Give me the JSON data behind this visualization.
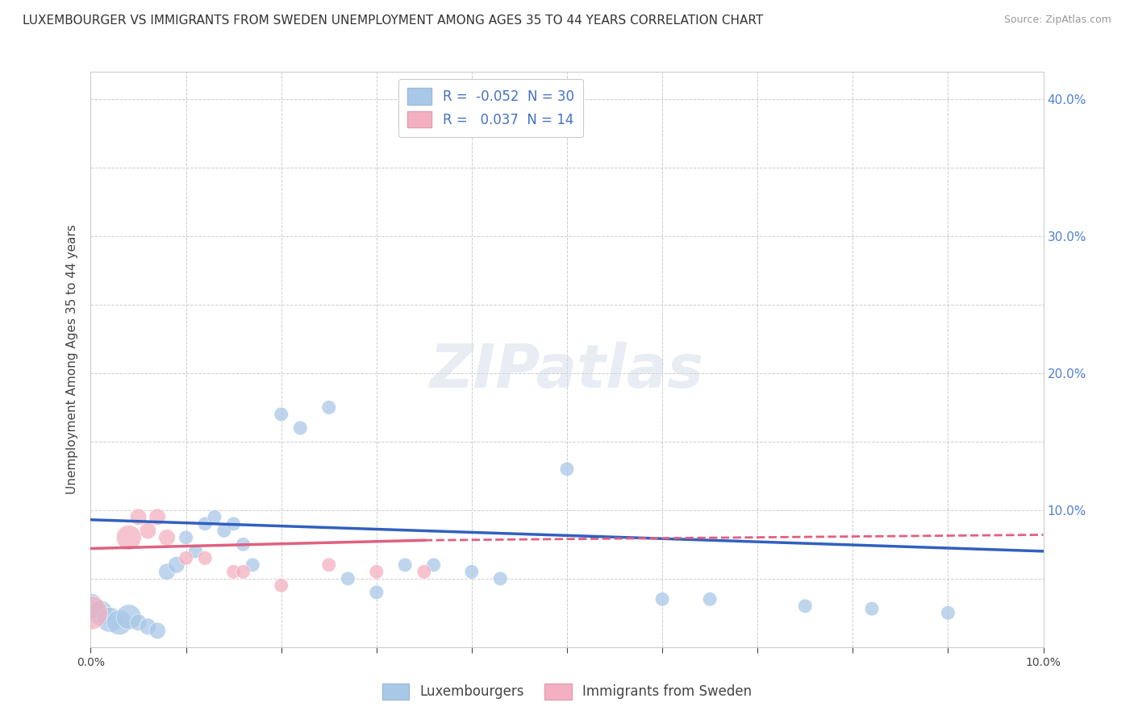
{
  "title": "LUXEMBOURGER VS IMMIGRANTS FROM SWEDEN UNEMPLOYMENT AMONG AGES 35 TO 44 YEARS CORRELATION CHART",
  "source": "Source: ZipAtlas.com",
  "ylabel": "Unemployment Among Ages 35 to 44 years",
  "xlim": [
    0.0,
    0.1
  ],
  "ylim": [
    0.0,
    0.42
  ],
  "lux_color": "#a8c8e8",
  "swe_color": "#f4b0c0",
  "lux_line_color": "#3060c0",
  "swe_line_color": "#e06080",
  "watermark": "ZIPatlas",
  "background_color": "#ffffff",
  "grid_color": "#c8c8c8",
  "lux_points": [
    [
      0.0,
      0.03
    ],
    [
      0.001,
      0.025
    ],
    [
      0.002,
      0.02
    ],
    [
      0.003,
      0.018
    ],
    [
      0.004,
      0.022
    ],
    [
      0.005,
      0.018
    ],
    [
      0.006,
      0.015
    ],
    [
      0.007,
      0.012
    ],
    [
      0.008,
      0.055
    ],
    [
      0.009,
      0.06
    ],
    [
      0.01,
      0.08
    ],
    [
      0.011,
      0.07
    ],
    [
      0.012,
      0.09
    ],
    [
      0.013,
      0.095
    ],
    [
      0.014,
      0.085
    ],
    [
      0.015,
      0.09
    ],
    [
      0.016,
      0.075
    ],
    [
      0.017,
      0.06
    ],
    [
      0.02,
      0.17
    ],
    [
      0.022,
      0.16
    ],
    [
      0.025,
      0.175
    ],
    [
      0.027,
      0.05
    ],
    [
      0.03,
      0.04
    ],
    [
      0.033,
      0.06
    ],
    [
      0.036,
      0.06
    ],
    [
      0.04,
      0.055
    ],
    [
      0.043,
      0.05
    ],
    [
      0.05,
      0.13
    ],
    [
      0.06,
      0.035
    ],
    [
      0.065,
      0.035
    ],
    [
      0.075,
      0.03
    ],
    [
      0.082,
      0.028
    ],
    [
      0.09,
      0.025
    ]
  ],
  "swe_points": [
    [
      0.0,
      0.025
    ],
    [
      0.004,
      0.08
    ],
    [
      0.005,
      0.095
    ],
    [
      0.006,
      0.085
    ],
    [
      0.007,
      0.095
    ],
    [
      0.008,
      0.08
    ],
    [
      0.01,
      0.065
    ],
    [
      0.012,
      0.065
    ],
    [
      0.015,
      0.055
    ],
    [
      0.016,
      0.055
    ],
    [
      0.02,
      0.045
    ],
    [
      0.025,
      0.06
    ],
    [
      0.03,
      0.055
    ],
    [
      0.035,
      0.055
    ]
  ],
  "lux_line": [
    [
      0.0,
      0.093
    ],
    [
      0.1,
      0.07
    ]
  ],
  "swe_line": [
    [
      0.0,
      0.072
    ],
    [
      0.035,
      0.078
    ]
  ],
  "swe_line_dashed": [
    [
      0.035,
      0.078
    ],
    [
      0.1,
      0.082
    ]
  ]
}
